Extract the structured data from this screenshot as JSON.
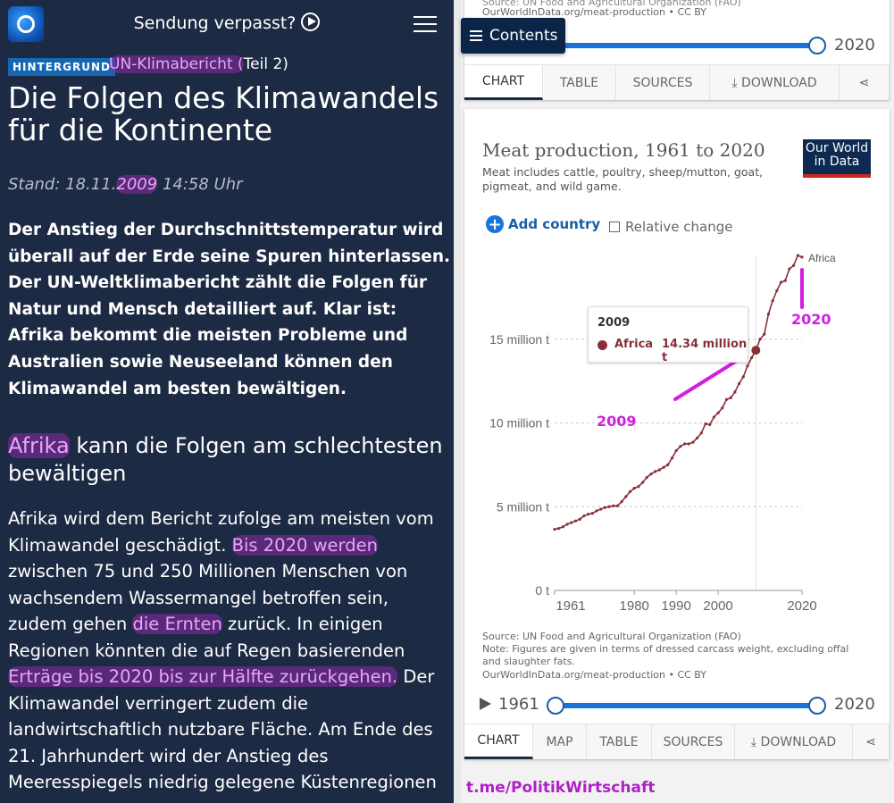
{
  "article": {
    "header": {
      "center_label": "Sendung verpasst?",
      "icons": [
        "tagesschau-logo",
        "play-circle-icon",
        "hamburger-menu-icon"
      ]
    },
    "badge": "HINTERGRUND",
    "topic_highlight": "UN-Klimabericht (",
    "topic_rest": "Teil 2)",
    "title": "Die Folgen des Klimawandels für die Kontinente",
    "stand_prefix": "Stand: 18.11.",
    "stand_year": "2009",
    "stand_suffix": " 14:58 Uhr",
    "lead": "Der Anstieg der Durchschnittstemperatur wird überall auf der Erde seine Spuren hinterlassen. Der UN-Weltklimabericht zählt die Folgen für Natur und Mensch detailliert auf. Klar ist: Afrika bekommt die meisten Probleme und Australien sowie Neuseeland können den Klimawandel am besten bewältigen.",
    "subheading_highlight": "Afrika",
    "subheading_rest": " kann die Folgen am schlechtesten bewältigen",
    "body": {
      "l1": "Afrika wird dem Bericht zufolge am meisten vom",
      "l2a": "Klimawandel geschädigt. ",
      "l2b": "Bis 2020 werden",
      "l3": "zwischen 75 und 250 Millionen Menschen von",
      "l4": "wachsendem Wassermangel betroffen sein,",
      "l5a": "zudem gehen ",
      "l5b": "die Ernten",
      "l5c": " zurück. In einigen",
      "l6": "Regionen könnten die auf Regen basierenden",
      "l7a": "Erträge bis 2020 bis zur Hälfte zurückgehen.",
      "l7b": " Der",
      "l8": "Klimawandel verringert zudem die",
      "l9": "landwirtschaftlich nutzbare Fläche. Am Ende des",
      "l10": "21. Jahrhundert wird der Anstieg des",
      "l11": "Meeresspiegels niedrig gelegene Küstenregionen"
    },
    "highlight_color": "#e9a6f5"
  },
  "owid_top": {
    "source_cut": "Source: UN Food and Agricultural Organization (FAO)",
    "url": "OurWorldInData.org/meat-production • CC BY",
    "slider_end": "2020",
    "contents_label": "Contents",
    "tabs": [
      "CHART",
      "TABLE",
      "SOURCES",
      "DOWNLOAD"
    ]
  },
  "owid": {
    "title": "Meat production, 1961 to 2020",
    "subtitle": "Meat includes cattle, poultry, sheep/mutton, goat, pigmeat, and wild game.",
    "logo": "Our World in Data",
    "add_country": "Add country",
    "relative_change": "Relative change",
    "relative_change_checked": false,
    "tooltip": {
      "year": "2009",
      "entity": "Africa",
      "value": "14.34 million t"
    },
    "source": "Source: UN Food and Agricultural Organization (FAO)",
    "note": "Note: Figures are given in terms of dressed carcass weight, excluding offal and slaughter fats.",
    "url": "OurWorldInData.org/meat-production • CC BY",
    "slider_start": "1961",
    "slider_end": "2020",
    "tabs": [
      "CHART",
      "MAP",
      "TABLE",
      "SOURCES",
      "DOWNLOAD"
    ],
    "annotations": {
      "a2009": "2009",
      "a2020": "2020"
    },
    "footer_link": "t.me/PolitikWirtschaft",
    "series_color": "#883039",
    "accent_color": "#1a73d9"
  },
  "chart_data": {
    "type": "line",
    "title": "Meat production, 1961 to 2020",
    "subtitle": "Meat includes cattle, poultry, sheep/mutton, goat, pigmeat, and wild game.",
    "xlim": [
      1961,
      2020
    ],
    "ylim": [
      0,
      20
    ],
    "x_ticks": [
      "1961",
      "1980",
      "1990",
      "2000",
      "2020"
    ],
    "y_ticks": [
      "0 t",
      "5 million t",
      "10 million t",
      "15 million t"
    ],
    "y_tick_values": [
      0,
      5,
      10,
      15
    ],
    "grid": "horizontal dashed",
    "series": [
      {
        "name": "Africa",
        "unit": "million t",
        "x": [
          1961,
          1962,
          1963,
          1964,
          1965,
          1966,
          1967,
          1968,
          1969,
          1970,
          1971,
          1972,
          1973,
          1974,
          1975,
          1976,
          1977,
          1978,
          1979,
          1980,
          1981,
          1982,
          1983,
          1984,
          1985,
          1986,
          1987,
          1988,
          1989,
          1990,
          1991,
          1992,
          1993,
          1994,
          1995,
          1996,
          1997,
          1998,
          1999,
          2000,
          2001,
          2002,
          2003,
          2004,
          2005,
          2006,
          2007,
          2008,
          2009,
          2010,
          2011,
          2012,
          2013,
          2014,
          2015,
          2016,
          2017,
          2018,
          2019,
          2020
        ],
        "y": [
          3.65,
          3.7,
          3.8,
          3.95,
          4.05,
          4.15,
          4.25,
          4.45,
          4.55,
          4.6,
          4.75,
          4.85,
          4.95,
          5.0,
          5.05,
          5.05,
          5.3,
          5.6,
          5.9,
          6.1,
          6.2,
          6.45,
          6.75,
          6.95,
          7.1,
          7.2,
          7.35,
          7.5,
          7.9,
          8.35,
          8.6,
          8.75,
          8.75,
          8.85,
          9.1,
          9.4,
          9.95,
          9.9,
          10.35,
          10.6,
          10.9,
          11.4,
          11.5,
          11.85,
          12.35,
          12.75,
          13.4,
          13.9,
          14.34,
          15.0,
          15.3,
          16.5,
          17.3,
          17.9,
          18.4,
          18.5,
          19.2,
          19.4,
          20.0,
          19.9
        ]
      }
    ],
    "hover_year": 2009
  }
}
